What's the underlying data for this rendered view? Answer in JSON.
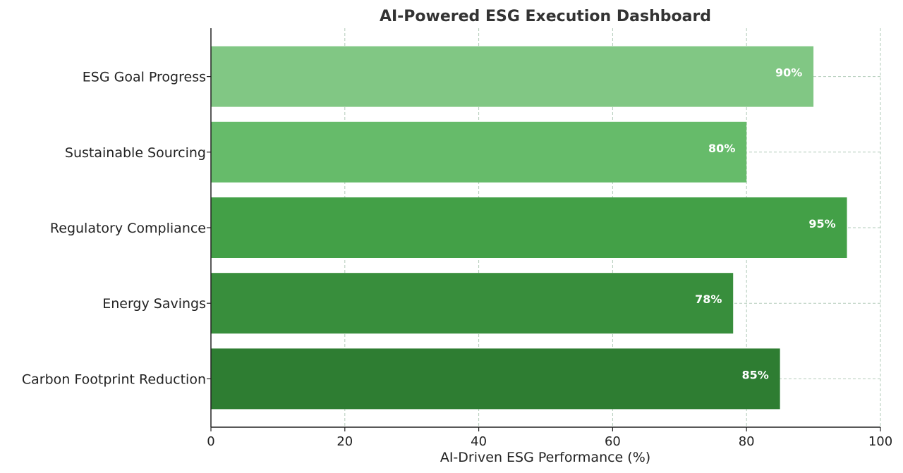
{
  "chart_data": {
    "type": "bar",
    "orientation": "horizontal",
    "title": "AI-Powered ESG Execution Dashboard",
    "xlabel": "AI-Driven ESG Performance (%)",
    "ylabel": "",
    "xlim": [
      0,
      100
    ],
    "xticks": [
      "0",
      "20",
      "40",
      "60",
      "80",
      "100"
    ],
    "grid": true,
    "categories": [
      "ESG Goal Progress",
      "Sustainable Sourcing",
      "Regulatory Compliance",
      "Energy Savings",
      "Carbon Footprint Reduction"
    ],
    "values": [
      90,
      80,
      95,
      78,
      85
    ],
    "data_labels": [
      "90%",
      "80%",
      "95%",
      "78%",
      "85%"
    ],
    "colors": [
      "#81c784",
      "#66bb6a",
      "#43a047",
      "#388e3c",
      "#2e7d32"
    ]
  }
}
